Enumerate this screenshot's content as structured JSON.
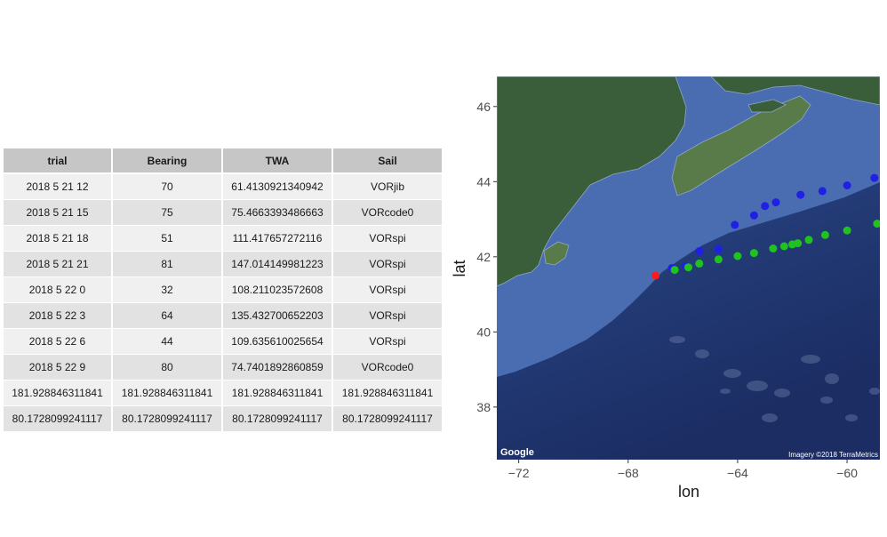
{
  "table": {
    "headers": [
      "trial",
      "Bearing",
      "TWA",
      "Sail"
    ],
    "rows": [
      [
        "2018 5 21 12",
        "70",
        "61.4130921340942",
        "VORjib"
      ],
      [
        "2018 5 21 15",
        "75",
        "75.4663393486663",
        "VORcode0"
      ],
      [
        "2018 5 21 18",
        "51",
        "111.417657272116",
        "VORspi"
      ],
      [
        "2018 5 21 21",
        "81",
        "147.014149981223",
        "VORspi"
      ],
      [
        "2018 5 22 0",
        "32",
        "108.211023572608",
        "VORspi"
      ],
      [
        "2018 5 22 3",
        "64",
        "135.432700652203",
        "VORspi"
      ],
      [
        "2018 5 22 6",
        "44",
        "109.635610025654",
        "VORspi"
      ],
      [
        "2018 5 22 9",
        "80",
        "74.7401892860859",
        "VORcode0"
      ],
      [
        "181.928846311841",
        "181.928846311841",
        "181.928846311841",
        "181.928846311841"
      ],
      [
        "80.1728099241117",
        "80.1728099241117",
        "80.1728099241117",
        "80.1728099241117"
      ]
    ]
  },
  "chart_data": {
    "type": "scatter",
    "title": "",
    "xlabel": "lon",
    "ylabel": "lat",
    "xlim": [
      -72.8,
      -58.8
    ],
    "ylim": [
      36.6,
      46.8
    ],
    "xticks": [
      -72,
      -68,
      -64,
      -60
    ],
    "yticks": [
      38,
      40,
      42,
      44,
      46
    ],
    "xtick_labels": [
      "−72",
      "−68",
      "−64",
      "−60"
    ],
    "ytick_labels": [
      "38",
      "40",
      "42",
      "44",
      "46"
    ],
    "background": "satellite map",
    "attribution": "Imagery ©2018 TerraMetrics",
    "logo": "Google",
    "series": [
      {
        "color": "#ff1a1a",
        "points": [
          [
            -67.0,
            41.5
          ]
        ]
      },
      {
        "color": "#1f1fe6",
        "points": [
          [
            -66.4,
            41.7
          ],
          [
            -65.9,
            41.75
          ],
          [
            -65.4,
            42.15
          ],
          [
            -64.7,
            42.2
          ],
          [
            -64.1,
            42.85
          ],
          [
            -63.4,
            43.1
          ],
          [
            -63.0,
            43.35
          ],
          [
            -62.6,
            43.45
          ],
          [
            -61.7,
            43.65
          ],
          [
            -60.9,
            43.75
          ],
          [
            -60.0,
            43.9
          ],
          [
            -59.0,
            44.1
          ]
        ]
      },
      {
        "color": "#1fc21f",
        "points": [
          [
            -66.3,
            41.65
          ],
          [
            -65.8,
            41.72
          ],
          [
            -65.4,
            41.82
          ],
          [
            -64.7,
            41.93
          ],
          [
            -64.0,
            42.02
          ],
          [
            -63.4,
            42.1
          ],
          [
            -62.7,
            42.22
          ],
          [
            -62.3,
            42.28
          ],
          [
            -62.0,
            42.33
          ],
          [
            -61.8,
            42.36
          ],
          [
            -61.4,
            42.45
          ],
          [
            -60.8,
            42.58
          ],
          [
            -60.0,
            42.7
          ],
          [
            -58.9,
            42.88
          ]
        ]
      }
    ],
    "map_colors": {
      "ocean_deep": "#1b2d63",
      "ocean_mid": "#2f4f92",
      "ocean_shelf": "#4a6cb0",
      "land": "#3a5e3a",
      "land_light": "#587b49",
      "coast": "#8fa8c8"
    }
  }
}
